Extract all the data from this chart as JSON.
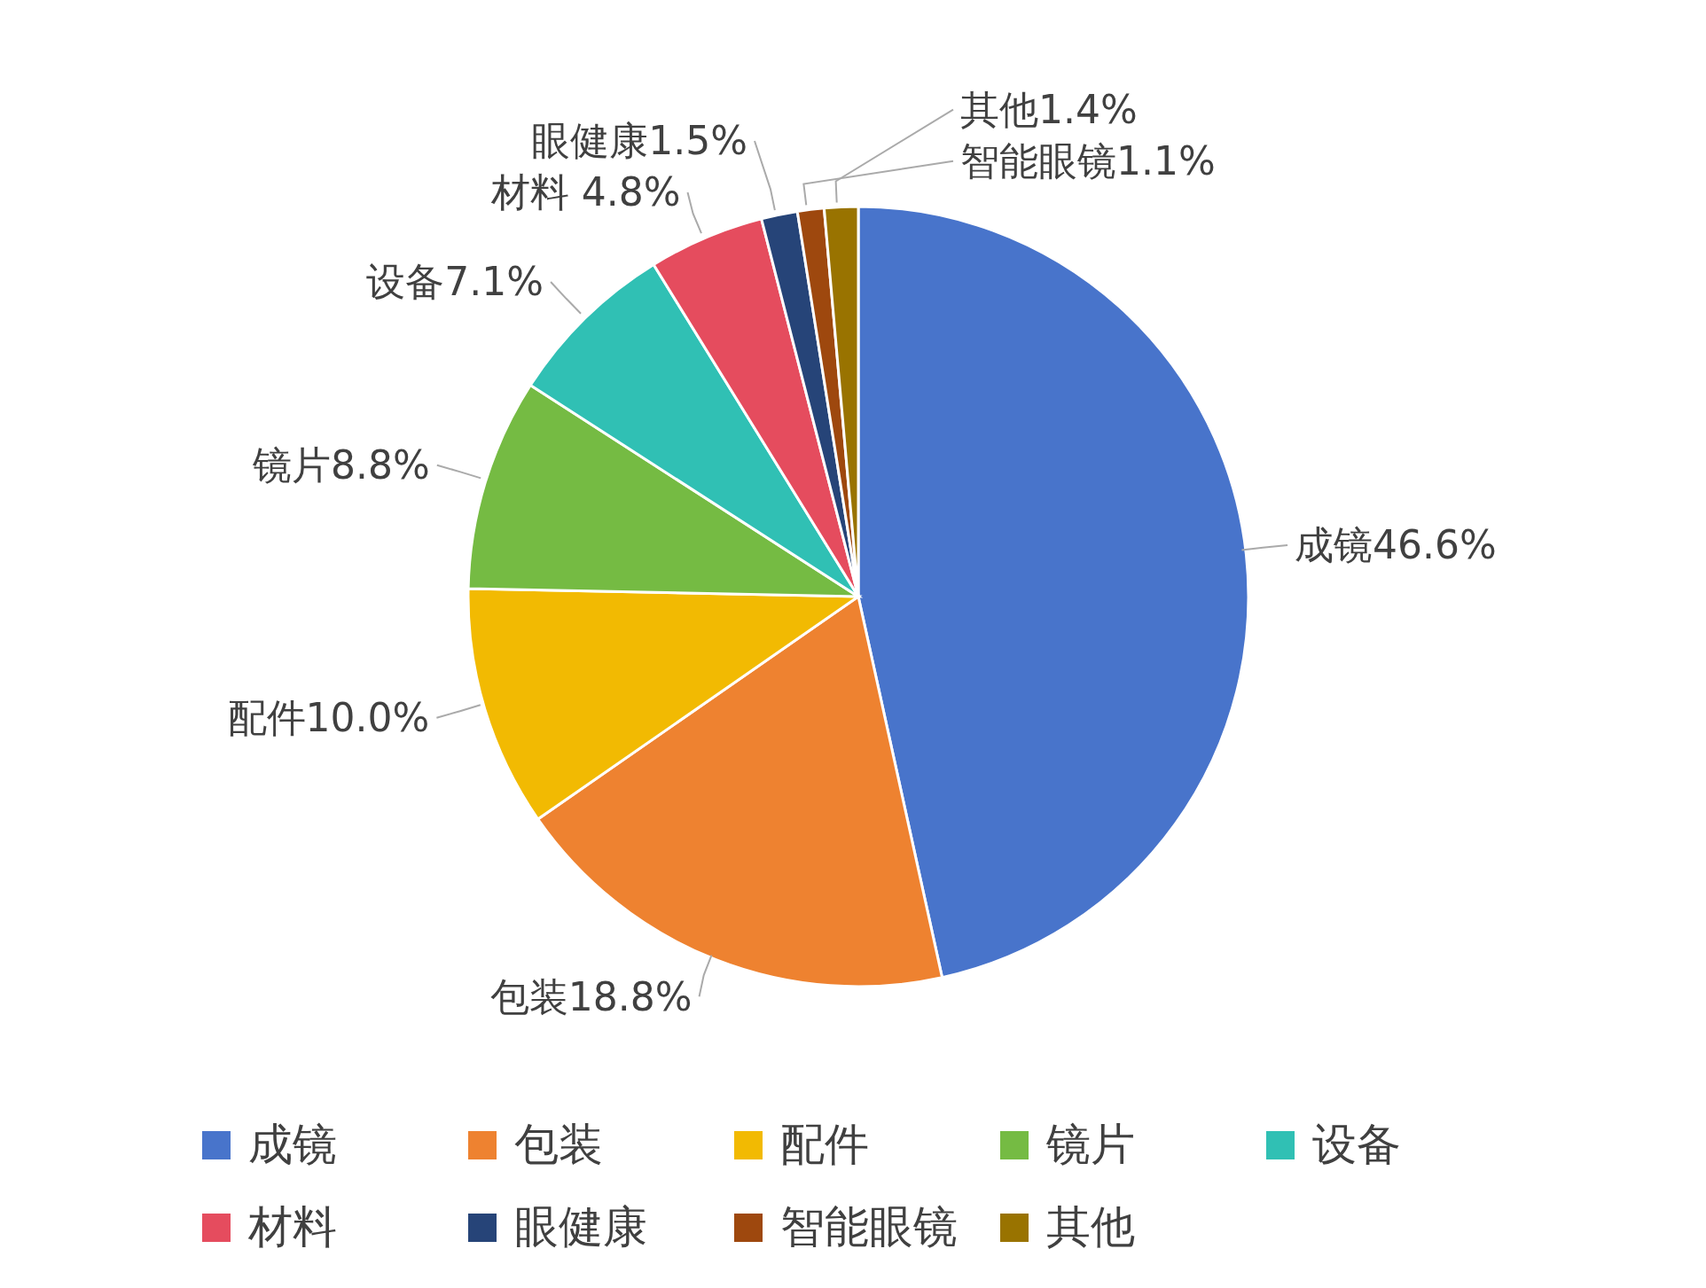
{
  "chart_data": {
    "type": "pie",
    "categories": [
      "成镜",
      "包装",
      "配件",
      "镜片",
      "设备",
      "材料",
      "眼健康",
      "智能眼镜",
      "其他"
    ],
    "values": [
      46.6,
      18.8,
      10.0,
      8.8,
      7.1,
      4.8,
      1.5,
      1.1,
      1.4
    ],
    "colors": [
      "#4874cb",
      "#ee8230",
      "#f2ba02",
      "#75bb43",
      "#30c0b4",
      "#e54c5e",
      "#264478",
      "#9e480e",
      "#997300"
    ],
    "value_labels": [
      "成镜46.6%",
      "包装18.8%",
      "配件10.0%",
      "镜片8.8%",
      "设备7.1%",
      "材料 4.8%",
      "眼健康1.5%",
      "智能眼镜1.1%",
      "其他1.4%"
    ],
    "legend": "bottom"
  }
}
